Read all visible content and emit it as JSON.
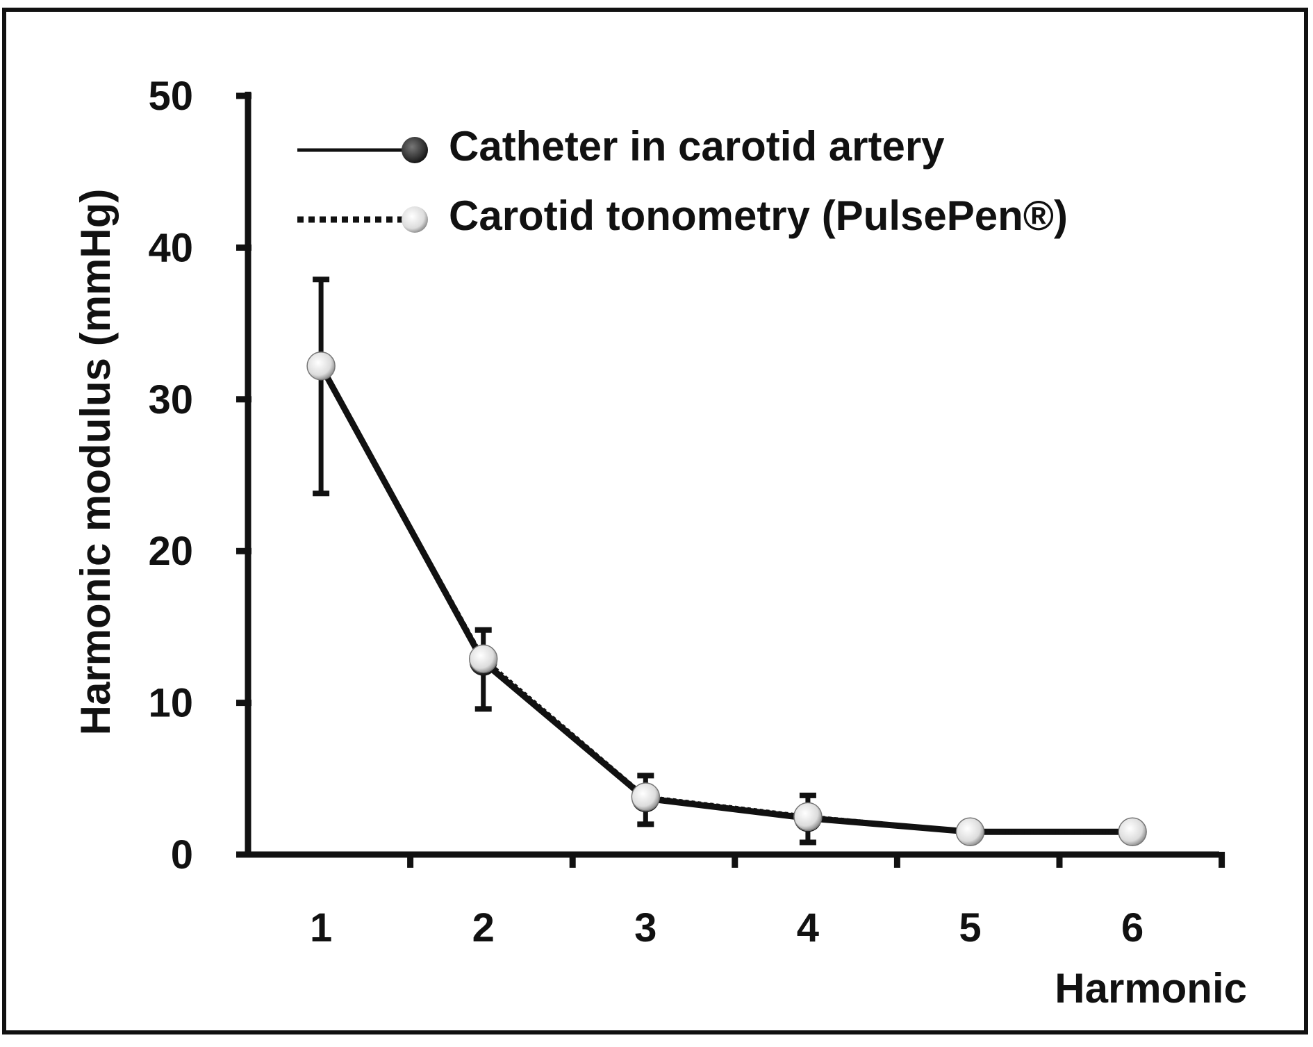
{
  "chart_data": {
    "type": "line",
    "title": "",
    "xlabel": "Harmonic",
    "ylabel": "Harmonic modulus   (mmHg)",
    "x": [
      1,
      2,
      3,
      4,
      5,
      6
    ],
    "xticks": [
      "1",
      "2",
      "3",
      "4",
      "5",
      "6"
    ],
    "yticks": [
      "0",
      "10",
      "20",
      "30",
      "40",
      "50"
    ],
    "ylim": [
      0,
      50
    ],
    "grid": false,
    "legend_position": "top-left",
    "series": [
      {
        "name": "Catheter in carotid artery",
        "line_style": "solid",
        "marker_color": "#555555",
        "values": [
          32.2,
          12.7,
          3.7,
          2.4,
          1.5,
          1.5
        ],
        "err_low": [
          23.8,
          9.6,
          2.0,
          0.8,
          1.0,
          1.0
        ],
        "err_high": [
          37.9,
          14.8,
          5.2,
          3.9,
          2.1,
          2.1
        ]
      },
      {
        "name": "Carotid tonometry (PulsePen®)",
        "line_style": "dotted",
        "marker_color": "#eeeeee",
        "values": [
          32.2,
          12.9,
          3.8,
          2.5,
          1.5,
          1.5
        ]
      }
    ]
  }
}
